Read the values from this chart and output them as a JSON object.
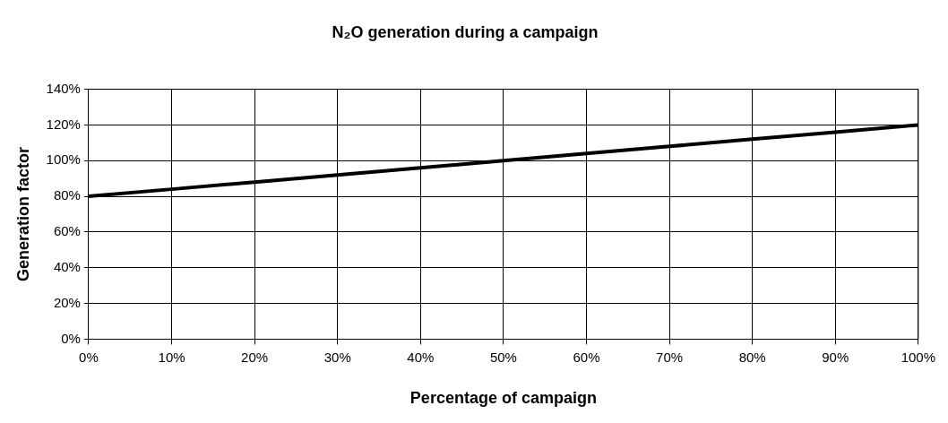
{
  "chart_data": {
    "type": "line",
    "title": "N₂O generation during a campaign",
    "xlabel": "Percentage of campaign",
    "ylabel": "Generation factor",
    "x": [
      0,
      10,
      20,
      30,
      40,
      50,
      60,
      70,
      80,
      90,
      100
    ],
    "series": [
      {
        "color": "#000000",
        "values": [
          80,
          84,
          88,
          92,
          96,
          100,
          104,
          108,
          112,
          116,
          120
        ]
      }
    ],
    "xlim": [
      0,
      100
    ],
    "xticks": [
      {
        "value": 0,
        "label": "0%"
      },
      {
        "value": 10,
        "label": "10%"
      },
      {
        "value": 20,
        "label": "20%"
      },
      {
        "value": 30,
        "label": "30%"
      },
      {
        "value": 40,
        "label": "40%"
      },
      {
        "value": 50,
        "label": "50%"
      },
      {
        "value": 60,
        "label": "60%"
      },
      {
        "value": 70,
        "label": "70%"
      },
      {
        "value": 80,
        "label": "80%"
      },
      {
        "value": 90,
        "label": "90%"
      },
      {
        "value": 100,
        "label": "100%"
      }
    ],
    "ylim": [
      0,
      140
    ],
    "yticks": [
      {
        "value": 0,
        "label": "0%"
      },
      {
        "value": 20,
        "label": "20%"
      },
      {
        "value": 40,
        "label": "40%"
      },
      {
        "value": 60,
        "label": "60%"
      },
      {
        "value": 80,
        "label": "80%"
      },
      {
        "value": 100,
        "label": "100%"
      },
      {
        "value": 120,
        "label": "120%"
      },
      {
        "value": 140,
        "label": "140%"
      }
    ],
    "grid": true,
    "legend": false,
    "marker": "none",
    "line_style": "solid"
  }
}
